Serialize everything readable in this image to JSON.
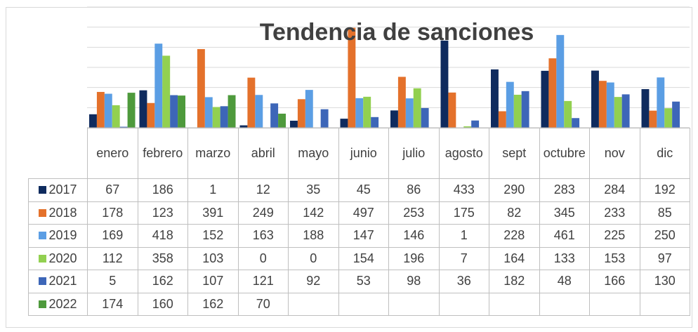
{
  "chart_data": {
    "type": "bar",
    "title": "Tendencia de sanciones",
    "categories": [
      "enero",
      "febrero",
      "marzo",
      "abril",
      "mayo",
      "junio",
      "julio",
      "agosto",
      "sept",
      "octubre",
      "nov",
      "dic"
    ],
    "series": [
      {
        "name": "2017",
        "color": "#0f2b5e",
        "values": [
          67,
          186,
          1,
          12,
          35,
          45,
          86,
          433,
          290,
          283,
          284,
          192
        ]
      },
      {
        "name": "2018",
        "color": "#e4712b",
        "values": [
          178,
          123,
          391,
          249,
          142,
          497,
          253,
          175,
          82,
          345,
          233,
          85
        ]
      },
      {
        "name": "2019",
        "color": "#5b9ee4",
        "values": [
          169,
          418,
          152,
          163,
          188,
          147,
          146,
          1,
          228,
          461,
          225,
          250
        ]
      },
      {
        "name": "2020",
        "color": "#92d050",
        "values": [
          112,
          358,
          103,
          0,
          0,
          154,
          196,
          7,
          164,
          133,
          153,
          97
        ]
      },
      {
        "name": "2021",
        "color": "#3d66b8",
        "values": [
          5,
          162,
          107,
          121,
          92,
          53,
          98,
          36,
          182,
          48,
          166,
          130
        ]
      },
      {
        "name": "2022",
        "color": "#4e9a3c",
        "values": [
          174,
          160,
          162,
          70,
          null,
          null,
          null,
          null,
          null,
          null,
          null,
          null
        ]
      }
    ],
    "ylim": [
      0,
      600
    ],
    "yticks": [
      0,
      100,
      200,
      300,
      400,
      500,
      600
    ],
    "grid": true
  }
}
